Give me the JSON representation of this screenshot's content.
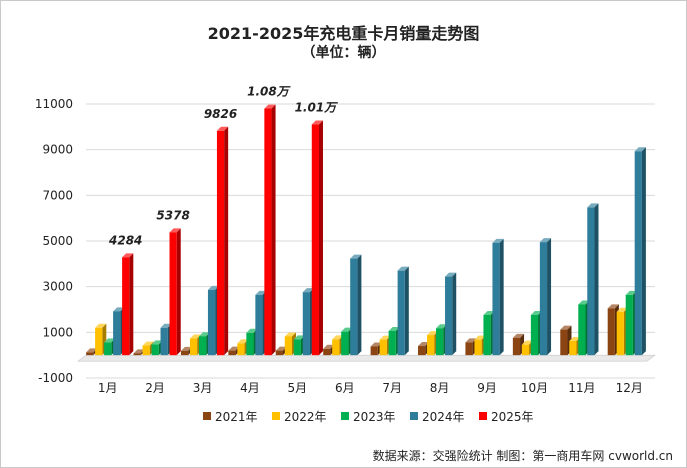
{
  "header": {
    "title": "2021-2025年充电重卡月销量走势图",
    "subtitle": "（单位：辆）"
  },
  "footer": {
    "source": "数据来源：交强险统计  制图：第一商用车网 cvworld.cn"
  },
  "chart_data": {
    "type": "bar",
    "style": "3d-clustered",
    "title": "2021-2025年充电重卡月销量走势图",
    "subtitle": "（单位：辆）",
    "xlabel": "",
    "ylabel": "",
    "ylim": [
      -1000,
      11000
    ],
    "yticks": [
      11000,
      9000,
      7000,
      5000,
      3000,
      1000,
      -1000
    ],
    "grid": true,
    "legend_position": "bottom",
    "categories": [
      "1月",
      "2月",
      "3月",
      "4月",
      "5月",
      "6月",
      "7月",
      "8月",
      "9月",
      "10月",
      "11月",
      "12月"
    ],
    "series": [
      {
        "name": "2021年",
        "color": "#8B4513",
        "values": [
          120,
          80,
          190,
          200,
          200,
          280,
          380,
          400,
          560,
          760,
          1120,
          2050
        ]
      },
      {
        "name": "2022年",
        "color": "#FFC000",
        "values": [
          1200,
          420,
          730,
          520,
          820,
          690,
          680,
          880,
          680,
          460,
          620,
          1900
        ]
      },
      {
        "name": "2023年",
        "color": "#00B050",
        "values": [
          560,
          470,
          830,
          980,
          690,
          1030,
          1060,
          1180,
          1760,
          1760,
          2220,
          2640
        ]
      },
      {
        "name": "2024年",
        "color": "#2E7D9A",
        "values": [
          1920,
          1200,
          2860,
          2640,
          2760,
          4230,
          3700,
          3440,
          4920,
          4950,
          6470,
          8930
        ]
      },
      {
        "name": "2025年",
        "color": "#FF0000",
        "values": [
          4284,
          5378,
          9826,
          10800,
          10100,
          null,
          null,
          null,
          null,
          null,
          null,
          null
        ]
      }
    ],
    "data_labels": [
      {
        "series": "2025年",
        "category": "1月",
        "text": "4284"
      },
      {
        "series": "2025年",
        "category": "2月",
        "text": "5378"
      },
      {
        "series": "2025年",
        "category": "3月",
        "text": "9826"
      },
      {
        "series": "2025年",
        "category": "4月",
        "text": "1.08万"
      },
      {
        "series": "2025年",
        "category": "5月",
        "text": "1.01万"
      }
    ]
  }
}
